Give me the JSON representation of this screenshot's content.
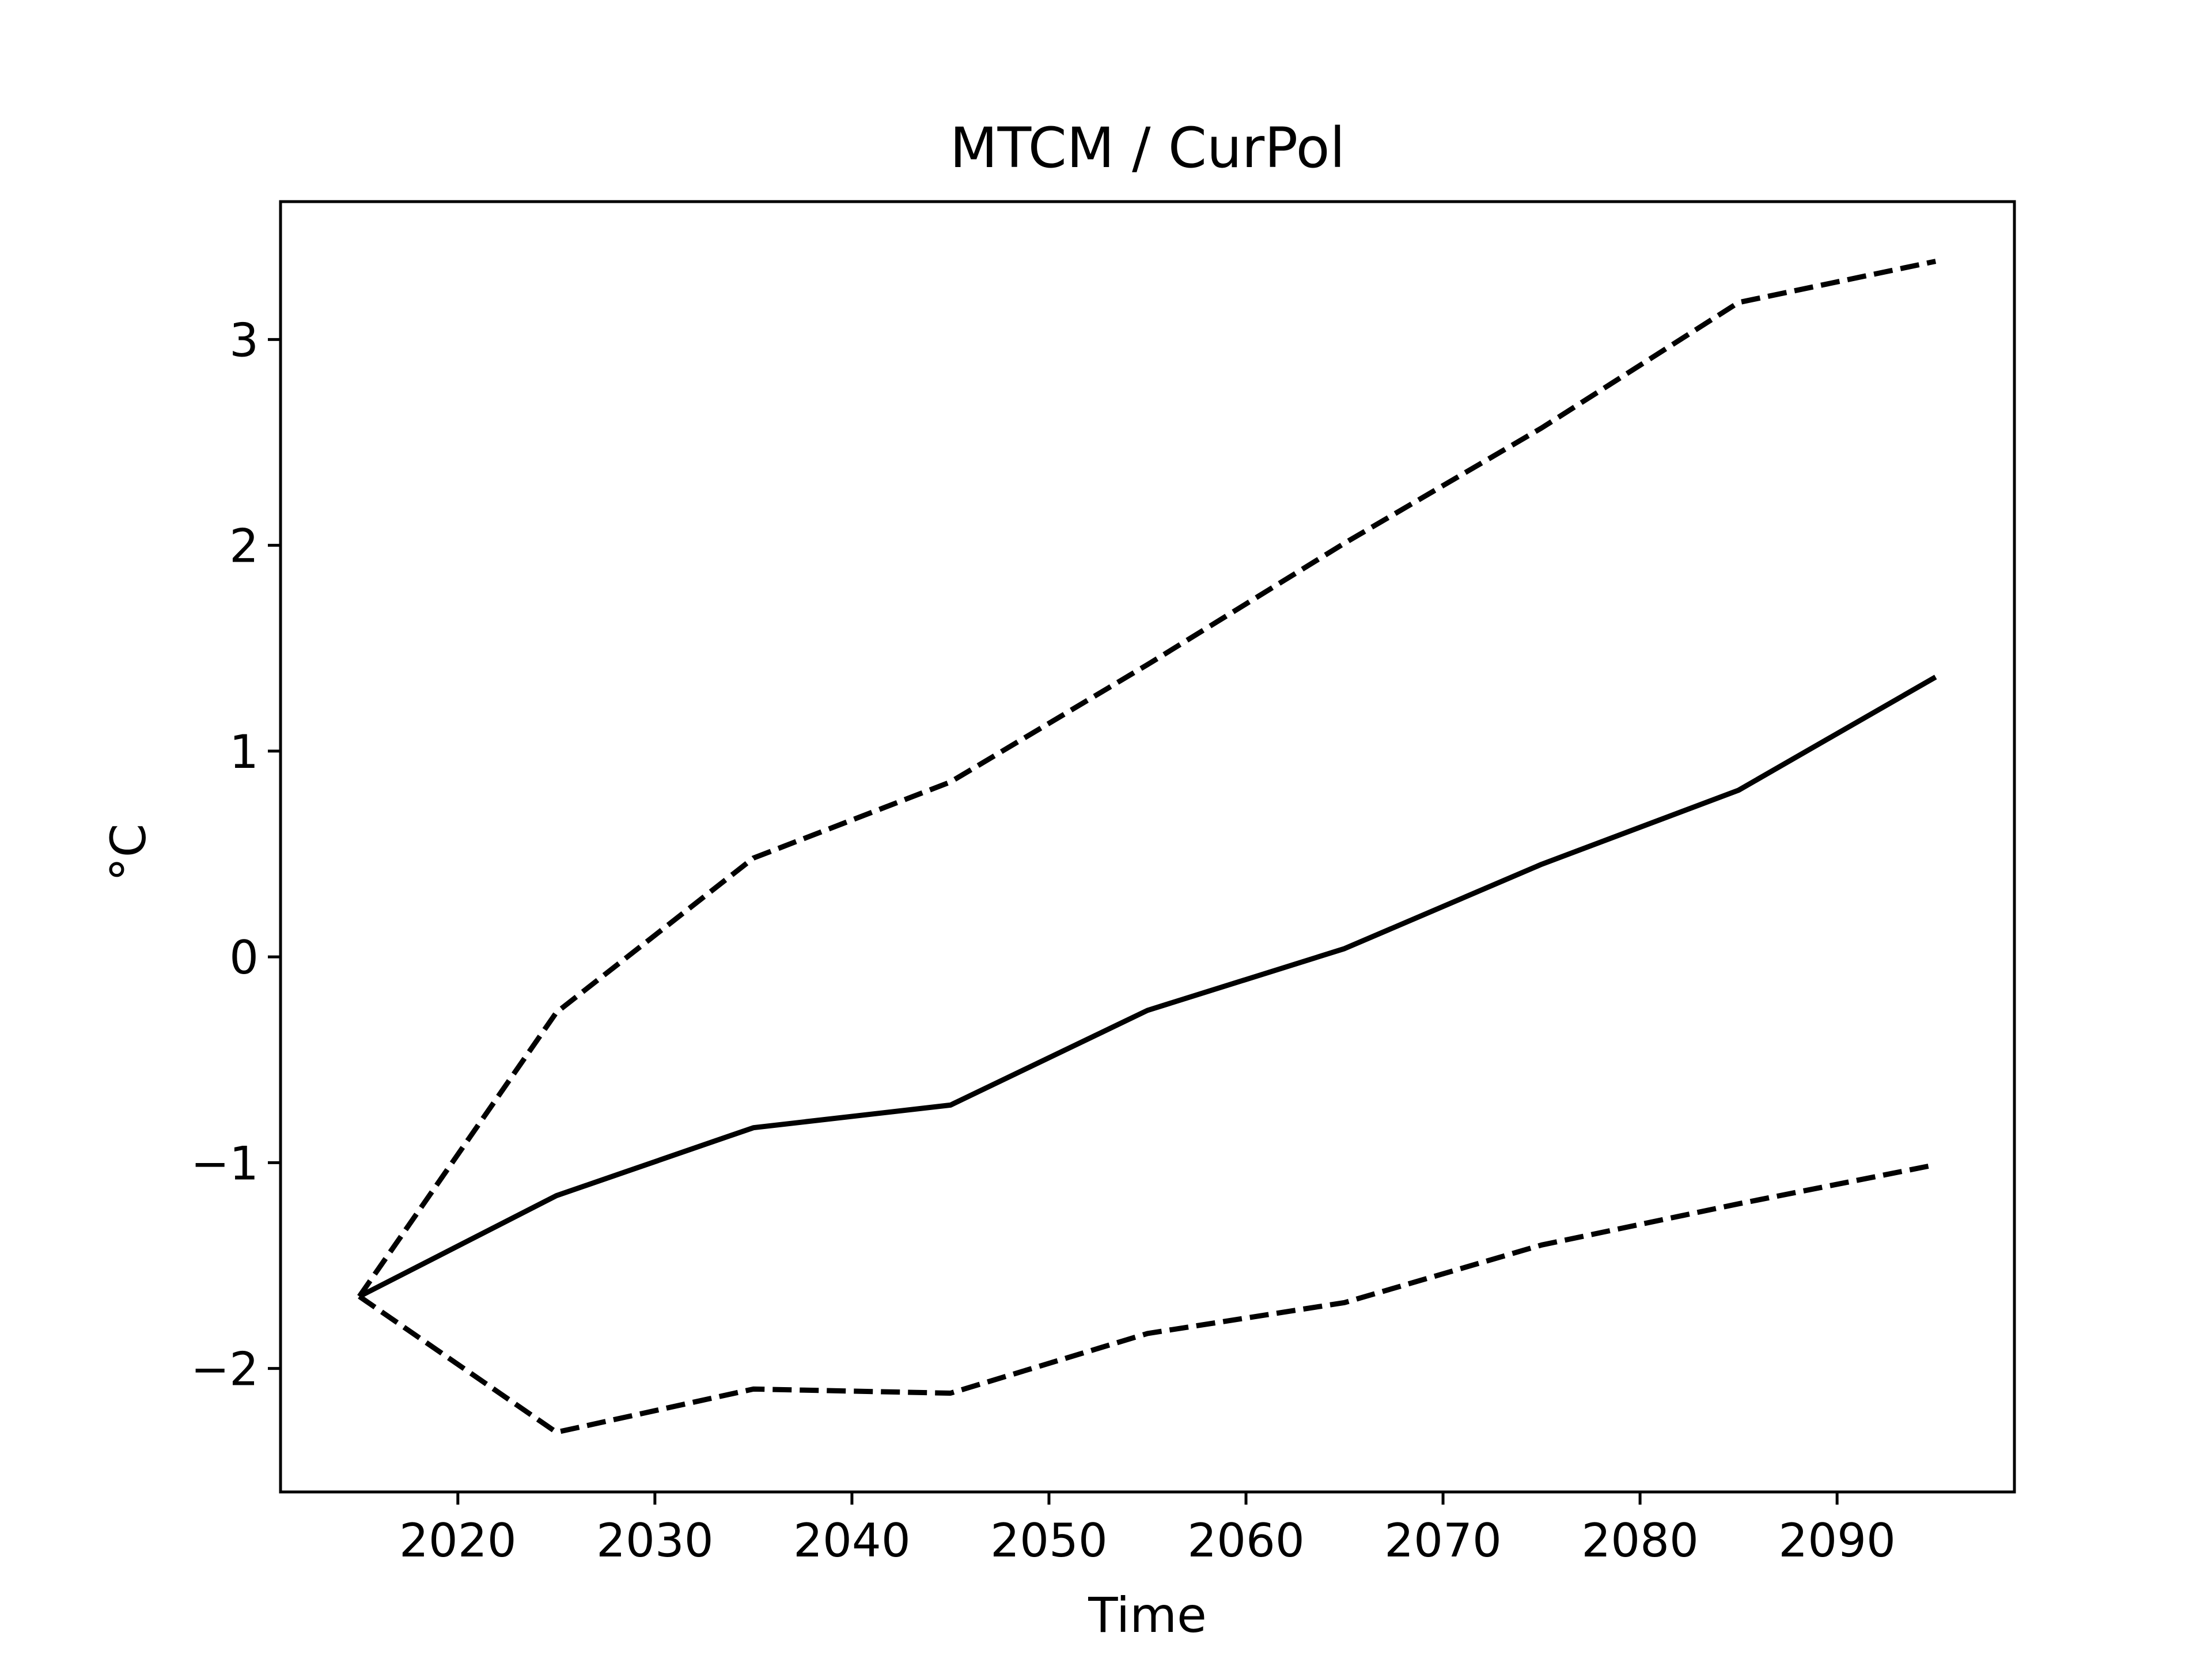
{
  "chart_data": {
    "type": "line",
    "title": "MTCM / CurPol",
    "xlabel": "Time",
    "ylabel": "°C",
    "xlim": [
      2011,
      2099
    ],
    "ylim": [
      -2.6,
      3.67
    ],
    "xticks": [
      2020,
      2030,
      2040,
      2050,
      2060,
      2070,
      2080,
      2090
    ],
    "yticks": [
      -2,
      -1,
      0,
      1,
      2,
      3
    ],
    "ytick_labels": [
      "−2",
      "−1",
      "0",
      "1",
      "2",
      "3"
    ],
    "grid": false,
    "legend": "none",
    "colors": {
      "line": "#000000",
      "axes": "#000000",
      "background": "#ffffff"
    },
    "x": [
      2015,
      2025,
      2035,
      2045,
      2055,
      2065,
      2075,
      2085,
      2095
    ],
    "series": [
      {
        "style": "dashed",
        "values": [
          -1.65,
          -0.27,
          0.48,
          0.85,
          1.42,
          2.01,
          2.57,
          3.18,
          3.38
        ]
      },
      {
        "style": "solid",
        "values": [
          -1.65,
          -1.16,
          -0.83,
          -0.72,
          -0.26,
          0.04,
          0.45,
          0.81,
          1.36
        ]
      },
      {
        "style": "dashed",
        "values": [
          -1.65,
          -2.31,
          -2.1,
          -2.12,
          -1.83,
          -1.68,
          -1.4,
          -1.2,
          -1.01
        ]
      }
    ]
  }
}
